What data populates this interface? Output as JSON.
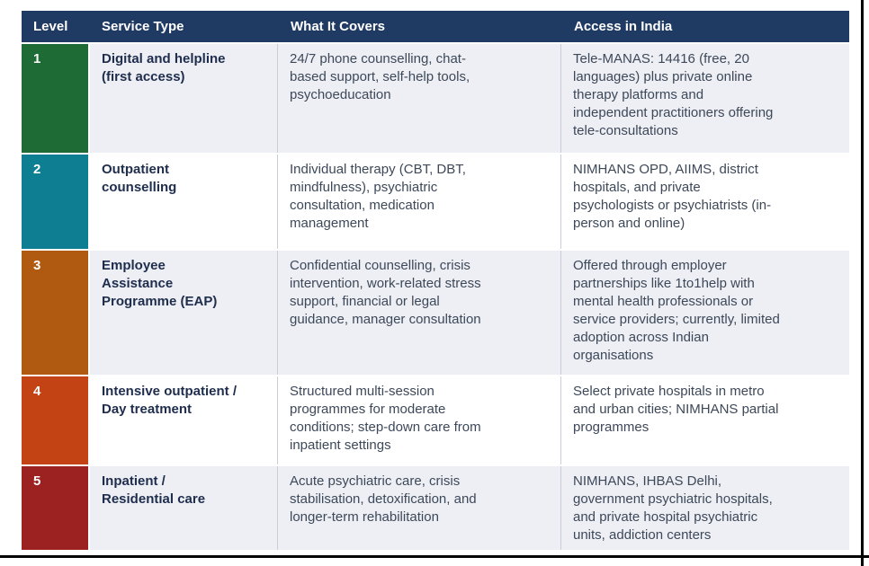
{
  "table": {
    "header_bg": "#1f3a63",
    "stripe_bg": "#edeff4",
    "white_bg": "#ffffff",
    "headers": {
      "level": "Level",
      "service_type": "Service Type",
      "covers": "What It Covers",
      "access": "Access in India"
    },
    "rows": [
      {
        "level": "1",
        "color": "#1e6b36",
        "service_type": "Digital and helpline\n(first access)",
        "covers": "24/7 phone counselling, chat-\nbased support, self-help tools,\npsychoeducation",
        "access": "Tele-MANAS: 14416 (free, 20\nlanguages) plus private online\ntherapy platforms and\nindependent practitioners offering\ntele-consultations"
      },
      {
        "level": "2",
        "color": "#0e7e92",
        "service_type": "Outpatient\ncounselling",
        "covers": "Individual therapy (CBT, DBT,\nmindfulness), psychiatric\nconsultation, medication\nmanagement",
        "access": "NIMHANS OPD, AIIMS, district\nhospitals, and private\npsychologists or psychiatrists (in-\nperson and online)"
      },
      {
        "level": "3",
        "color": "#b05a11",
        "service_type": "Employee\nAssistance\nProgramme (EAP)",
        "covers": "Confidential counselling, crisis\nintervention, work-related stress\nsupport, financial or legal\nguidance, manager consultation",
        "access": "Offered through employer\npartnerships like 1to1help with\nmental health professionals or\nservice providers; currently, limited\nadoption across Indian\norganisations"
      },
      {
        "level": "4",
        "color": "#c34315",
        "service_type": "Intensive outpatient /\nDay treatment",
        "covers": "Structured multi-session\nprogrammes for moderate\nconditions; step-down care from\ninpatient settings",
        "access": "Select private hospitals in metro\nand urban cities; NIMHANS partial\nprogrammes"
      },
      {
        "level": "5",
        "color": "#9c2121",
        "service_type": "Inpatient /\nResidential care",
        "covers": "Acute psychiatric care, crisis\nstabilisation, detoxification, and\nlonger-term rehabilitation",
        "access": "NIMHANS, IHBAS Delhi,\ngovernment psychiatric hospitals,\nand private hospital psychiatric\nunits, addiction centers"
      }
    ]
  }
}
